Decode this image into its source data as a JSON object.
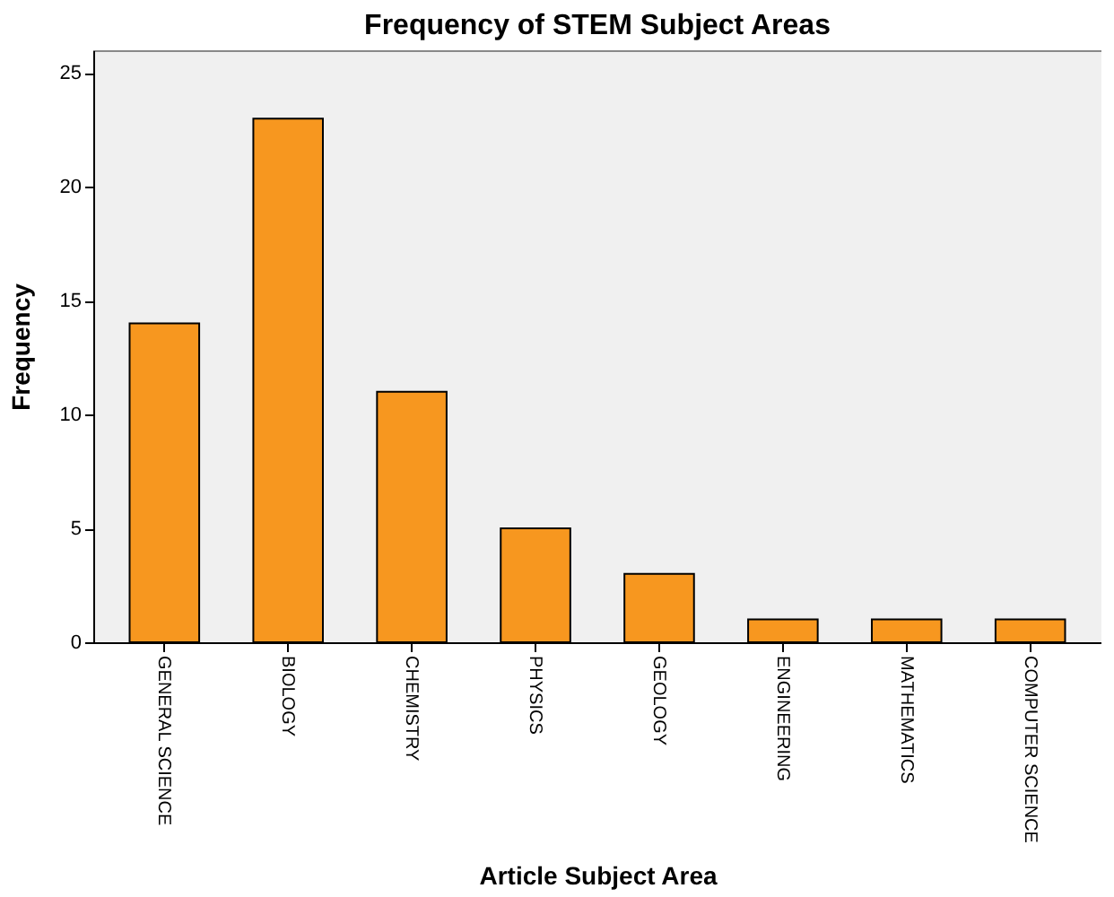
{
  "chart_data": {
    "type": "bar",
    "title": "Frequency of STEM Subject Areas",
    "xlabel": "Article Subject Area",
    "ylabel": "Frequency",
    "categories": [
      "GENERAL SCIENCE",
      "BIOLOGY",
      "CHEMISTRY",
      "PHYSICS",
      "GEOLOGY",
      "ENGINEERING",
      "MATHEMATICS",
      "COMPUTER SCIENCE"
    ],
    "values": [
      14,
      23,
      11,
      5,
      3,
      1,
      1,
      1
    ],
    "color": "#f7971f",
    "ylim": [
      0,
      26
    ],
    "yticks": [
      0,
      5,
      10,
      15,
      20,
      25
    ],
    "grid": false
  }
}
